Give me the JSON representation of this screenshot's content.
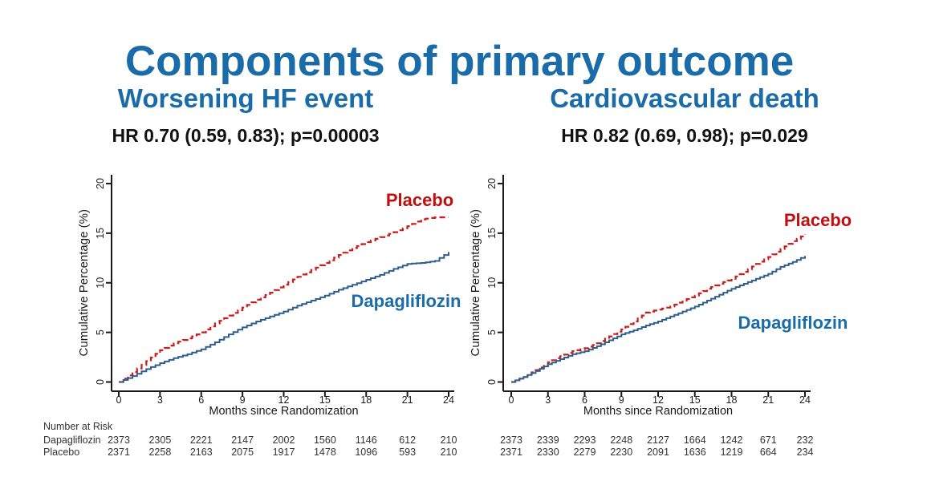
{
  "title": "Components of primary outcome",
  "colors": {
    "heading_blue": "#1a6ca8",
    "stat_black": "#111111",
    "placebo_red": "#c00f0f",
    "dapagliflozin_blue": "#1a6ca8",
    "curve_red": "#cc1c1c",
    "curve_blue": "#2e5e8c",
    "axis_black": "#1a1a1a",
    "risk_text": "#333333"
  },
  "chart_data": [
    {
      "type": "line",
      "id": "worsening-hf-event",
      "title": "Worsening HF event",
      "subtitle": "HR 0.70 (0.59, 0.83); p=0.00003",
      "xlabel": "Months since Randomization",
      "ylabel": "Cumulative Percentage (%)",
      "xlim": [
        0,
        24
      ],
      "ylim": [
        0,
        20
      ],
      "xticks": [
        0,
        3,
        6,
        9,
        12,
        15,
        18,
        21,
        24
      ],
      "yticks": [
        0,
        5,
        10,
        15,
        20
      ],
      "x_months": [
        0,
        1,
        2,
        3,
        4,
        5,
        6,
        7,
        8,
        9,
        10,
        11,
        12,
        13,
        14,
        15,
        16,
        17,
        18,
        19,
        20,
        21,
        22,
        23,
        24
      ],
      "series": [
        {
          "name": "Placebo",
          "style": "dashed",
          "curve_color": "#cc1c1c",
          "label_color": "#c00f0f",
          "values": [
            0,
            1.0,
            2.1,
            3.2,
            3.9,
            4.4,
            5.0,
            5.9,
            6.7,
            7.5,
            8.3,
            9.0,
            9.8,
            10.6,
            11.3,
            12.0,
            12.8,
            13.5,
            14.1,
            14.6,
            15.1,
            15.7,
            16.4,
            16.6,
            16.6
          ]
        },
        {
          "name": "Dapagliflozin",
          "style": "solid",
          "curve_color": "#2e5e8c",
          "label_color": "#1a6ca8",
          "values": [
            0,
            0.6,
            1.3,
            1.9,
            2.4,
            2.8,
            3.3,
            4.0,
            4.8,
            5.5,
            6.1,
            6.6,
            7.1,
            7.7,
            8.2,
            8.7,
            9.3,
            9.8,
            10.3,
            10.8,
            11.4,
            11.9,
            12.0,
            12.2,
            13.1
          ]
        }
      ],
      "number_at_risk": {
        "header": "Number at Risk",
        "rows": [
          {
            "label": "Dapagliflozin",
            "values": [
              2373,
              2305,
              2221,
              2147,
              2002,
              1560,
              1146,
              612,
              210
            ]
          },
          {
            "label": "Placebo",
            "values": [
              2371,
              2258,
              2163,
              2075,
              1917,
              1478,
              1096,
              593,
              210
            ]
          }
        ]
      }
    },
    {
      "type": "line",
      "id": "cardiovascular-death",
      "title": "Cardiovascular death",
      "subtitle": "HR 0.82 (0.69, 0.98); p=0.029",
      "xlabel": "Months since Randomization",
      "ylabel": "Cumulative Percentage (%)",
      "xlim": [
        0,
        24
      ],
      "ylim": [
        0,
        20
      ],
      "xticks": [
        0,
        3,
        6,
        9,
        12,
        15,
        18,
        21,
        24
      ],
      "yticks": [
        0,
        5,
        10,
        15,
        20
      ],
      "x_months": [
        0,
        1,
        2,
        3,
        4,
        5,
        6,
        7,
        8,
        9,
        10,
        11,
        12,
        13,
        14,
        15,
        16,
        17,
        18,
        19,
        20,
        21,
        22,
        23,
        24
      ],
      "series": [
        {
          "name": "Placebo",
          "style": "dashed",
          "curve_color": "#cc1c1c",
          "label_color": "#c00f0f",
          "values": [
            0,
            0.5,
            1.2,
            2.0,
            2.6,
            3.1,
            3.4,
            3.9,
            4.6,
            5.3,
            6.1,
            7.0,
            7.3,
            7.6,
            8.2,
            8.7,
            9.4,
            9.9,
            10.4,
            11.1,
            11.9,
            12.6,
            13.4,
            14.2,
            14.9
          ]
        },
        {
          "name": "Dapagliflozin",
          "style": "solid",
          "curve_color": "#2e5e8c",
          "label_color": "#1a6ca8",
          "values": [
            0,
            0.5,
            1.1,
            1.8,
            2.3,
            2.8,
            3.1,
            3.6,
            4.2,
            4.8,
            5.2,
            5.7,
            6.1,
            6.6,
            7.1,
            7.6,
            8.2,
            8.8,
            9.4,
            9.9,
            10.4,
            10.9,
            11.6,
            12.1,
            12.7
          ]
        }
      ],
      "number_at_risk": {
        "header": "",
        "rows": [
          {
            "label": "",
            "values": [
              2373,
              2339,
              2293,
              2248,
              2127,
              1664,
              1242,
              671,
              232
            ]
          },
          {
            "label": "",
            "values": [
              2371,
              2330,
              2279,
              2230,
              2091,
              1636,
              1219,
              664,
              234
            ]
          }
        ]
      }
    }
  ]
}
